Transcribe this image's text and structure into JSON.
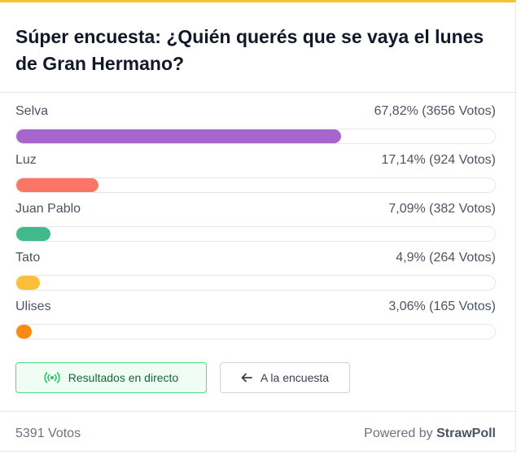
{
  "poll": {
    "title": "Súper encuesta: ¿Quién querés que se vaya el lunes de Gran Hermano?",
    "options": [
      {
        "label": "Selva",
        "stat": "67,82% (3656 Votos)",
        "percent": 67.82,
        "color": "#a866cc"
      },
      {
        "label": "Luz",
        "stat": "17,14% (924 Votos)",
        "percent": 17.14,
        "color": "#fb7666"
      },
      {
        "label": "Juan Pablo",
        "stat": "7,09% (382 Votos)",
        "percent": 7.09,
        "color": "#40b98c"
      },
      {
        "label": "Tato",
        "stat": "4,9% (264 Votos)",
        "percent": 4.9,
        "color": "#fbbf3a"
      },
      {
        "label": "Ulises",
        "stat": "3,06% (165 Votos)",
        "percent": 3.06,
        "color": "#fb8a10"
      }
    ]
  },
  "buttons": {
    "live_label": "Resultados en directo",
    "back_label": "A la encuesta"
  },
  "footer": {
    "total_votes": "5391 Votos",
    "powered_by": "Powered by",
    "brand": "StrawPoll"
  }
}
